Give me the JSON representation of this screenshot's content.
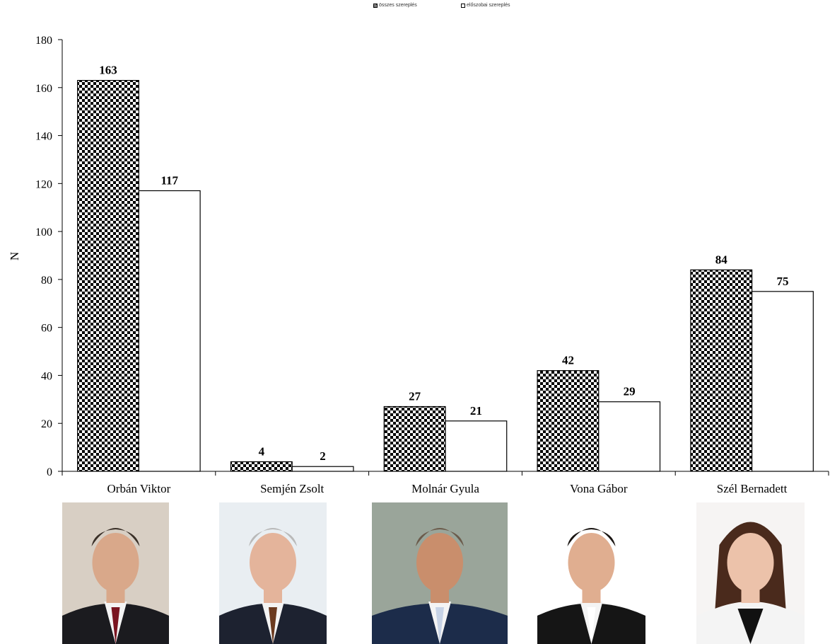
{
  "chart_data": {
    "type": "bar",
    "title": "",
    "xlabel": "",
    "ylabel": "N",
    "ylim": [
      0,
      180
    ],
    "yticks": [
      0,
      20,
      40,
      60,
      80,
      100,
      120,
      140,
      160,
      180
    ],
    "categories": [
      "Orbán Viktor",
      "Semjén Zsolt",
      "Molnár Gyula",
      "Vona Gábor",
      "Szél Bernadett"
    ],
    "series": [
      {
        "name": "összes szereplés",
        "values": [
          163,
          4,
          27,
          42,
          84
        ],
        "fill": "checkerboard"
      },
      {
        "name": "előszobai szereplés",
        "values": [
          117,
          2,
          21,
          29,
          75
        ],
        "fill": "white"
      }
    ],
    "legend_position": "top-center",
    "grid": false
  },
  "portraits": [
    {
      "person": "Orbán Viktor",
      "hair": "#3a3028",
      "suit": "#1b1b1f",
      "tie": "#7a1420",
      "bg": "#d8cfc4",
      "skin": "#d9a88a"
    },
    {
      "person": "Semjén Zsolt",
      "hair": "#b9b9b9",
      "suit": "#1d2230",
      "tie": "#6b3a1f",
      "bg": "#e9eef2",
      "skin": "#e4b49b"
    },
    {
      "person": "Molnár Gyula",
      "hair": "#6b5b4b",
      "suit": "#1c2c4a",
      "tie": "#c7d3e6",
      "bg": "#9aa59a",
      "skin": "#c98e6c"
    },
    {
      "person": "Vona Gábor",
      "hair": "#1a1512",
      "suit": "#151515",
      "tie": "#ffffff",
      "bg": "#ffffff",
      "skin": "#e0ae90"
    },
    {
      "person": "Szél Bernadett",
      "hair": "#4a2a1c",
      "suit": "#f4f4f4",
      "tie": "#111111",
      "bg": "#f6f4f3",
      "skin": "#ecc2aa"
    }
  ]
}
